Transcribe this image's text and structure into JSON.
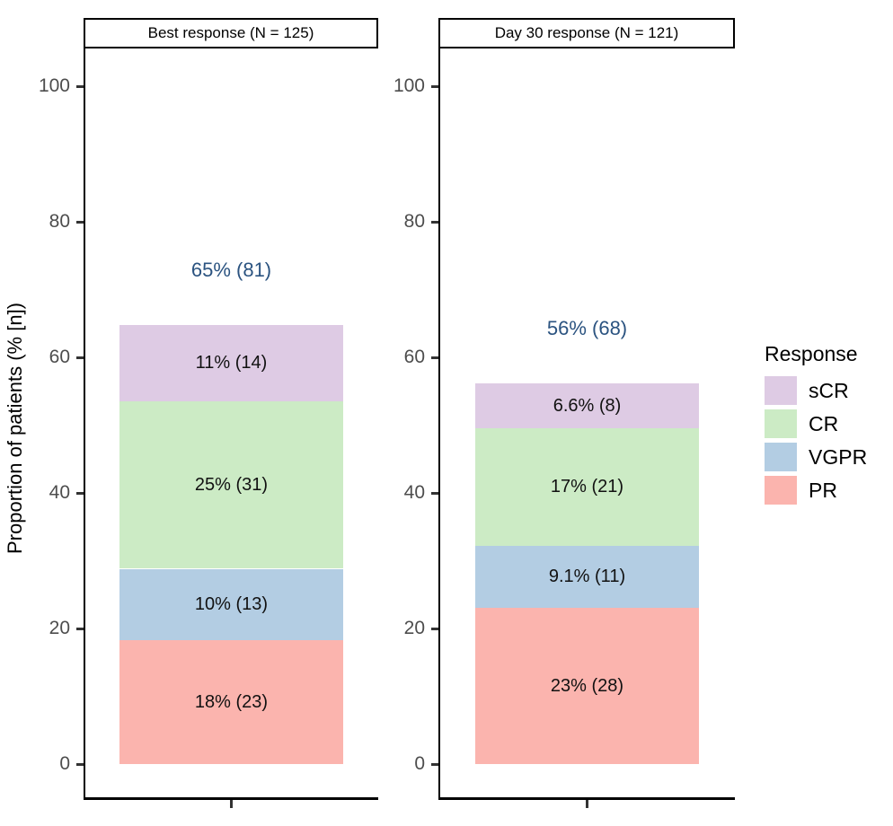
{
  "chart_data": {
    "type": "bar",
    "stacked": true,
    "ylabel": "Proportion of patients (% [n])",
    "ylim": [
      0,
      100
    ],
    "yticks": [
      "0",
      "20",
      "40",
      "60",
      "80",
      "100"
    ],
    "ytick_values": [
      0,
      20,
      40,
      60,
      80,
      100
    ],
    "grid": false,
    "legend": {
      "title": "Response",
      "position": "right",
      "entries": [
        {
          "label": "sCR",
          "color": "#DECBE4"
        },
        {
          "label": "CR",
          "color": "#CCEBC5"
        },
        {
          "label": "VGPR",
          "color": "#B3CDE3"
        },
        {
          "label": "PR",
          "color": "#FBB4AE"
        }
      ]
    },
    "panels": [
      {
        "title": "Best response (N = 125)",
        "total_label": "65% (81)",
        "total_pct": 64.8,
        "segments": [
          {
            "response": "PR",
            "pct": 18.4,
            "n": 23,
            "label": "18% (23)",
            "color": "#FBB4AE"
          },
          {
            "response": "VGPR",
            "pct": 10.4,
            "n": 13,
            "label": "10% (13)",
            "color": "#B3CDE3"
          },
          {
            "response": "CR",
            "pct": 24.8,
            "n": 31,
            "label": "25% (31)",
            "color": "#CCEBC5"
          },
          {
            "response": "sCR",
            "pct": 11.2,
            "n": 14,
            "label": "11% (14)",
            "color": "#DECBE4"
          }
        ]
      },
      {
        "title": "Day 30 response (N = 121)",
        "total_label": "56% (68)",
        "total_pct": 56.2,
        "segments": [
          {
            "response": "PR",
            "pct": 23.1,
            "n": 28,
            "label": "23% (28)",
            "color": "#FBB4AE"
          },
          {
            "response": "VGPR",
            "pct": 9.1,
            "n": 11,
            "label": "9.1% (11)",
            "color": "#B3CDE3"
          },
          {
            "response": "CR",
            "pct": 17.4,
            "n": 21,
            "label": "17% (21)",
            "color": "#CCEBC5"
          },
          {
            "response": "sCR",
            "pct": 6.6,
            "n": 8,
            "label": "6.6% (8)",
            "color": "#DECBE4"
          }
        ]
      }
    ],
    "colors": {
      "total_label": "#2B5380",
      "axis": "#000000",
      "tick_label": "#4D4D4D",
      "segment_label": "#111111",
      "strip_border": "#000000",
      "background": "#FFFFFF"
    }
  }
}
